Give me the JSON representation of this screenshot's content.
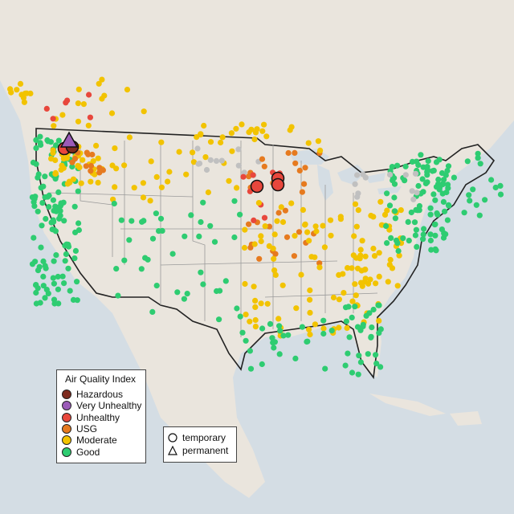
{
  "legend": {
    "title": "Air Quality Index",
    "categories": [
      {
        "label": "Hazardous",
        "color": "#7e2b1f"
      },
      {
        "label": "Very Unhealthy",
        "color": "#9b5bb8"
      },
      {
        "label": "Unhealthy",
        "color": "#e8473c"
      },
      {
        "label": "USG",
        "color": "#e67a1f"
      },
      {
        "label": "Moderate",
        "color": "#f2c300"
      },
      {
        "label": "Good",
        "color": "#2ecc71"
      }
    ],
    "no_data_color": "#c0c0c0"
  },
  "monitor_types": [
    {
      "label": "temporary",
      "shape": "circle"
    },
    {
      "label": "permanent",
      "shape": "triangle"
    }
  ],
  "colors": {
    "land": "#eae5dd",
    "water": "#d4dde4",
    "borders": "#222222"
  }
}
